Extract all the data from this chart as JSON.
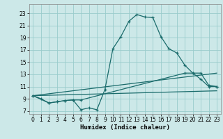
{
  "x_values": [
    0,
    1,
    2,
    3,
    4,
    5,
    6,
    7,
    8,
    9,
    10,
    11,
    12,
    13,
    14,
    15,
    16,
    17,
    18,
    19,
    20,
    21,
    22,
    23
  ],
  "line1_y": [
    9.5,
    9.0,
    8.3,
    8.5,
    8.7,
    8.8,
    7.2,
    7.5,
    7.2,
    10.5,
    17.2,
    19.2,
    21.7,
    22.8,
    22.4,
    22.3,
    19.2,
    17.2,
    16.5,
    14.5,
    13.2,
    12.2,
    11.0,
    11.0
  ],
  "line2_x": [
    0,
    2,
    3,
    4,
    5,
    6,
    19,
    20,
    21,
    22,
    23
  ],
  "line2_y": [
    9.5,
    8.3,
    8.5,
    8.7,
    8.8,
    8.8,
    13.2,
    13.2,
    13.2,
    11.2,
    11.0
  ],
  "line3_x": [
    0,
    23
  ],
  "line3_y": [
    9.5,
    13.2
  ],
  "line4_x": [
    0,
    23
  ],
  "line4_y": [
    9.5,
    10.3
  ],
  "bg_color": "#cce8e8",
  "grid_color": "#99cccc",
  "line_color": "#1a6b6b",
  "xlabel": "Humidex (Indice chaleur)",
  "ylim": [
    6.5,
    24.5
  ],
  "xlim": [
    -0.5,
    23.5
  ],
  "yticks": [
    7,
    9,
    11,
    13,
    15,
    17,
    19,
    21,
    23
  ],
  "xticks": [
    0,
    1,
    2,
    3,
    4,
    5,
    6,
    7,
    8,
    9,
    10,
    11,
    12,
    13,
    14,
    15,
    16,
    17,
    18,
    19,
    20,
    21,
    22,
    23
  ],
  "tick_fontsize": 5.5,
  "xlabel_fontsize": 6.5
}
